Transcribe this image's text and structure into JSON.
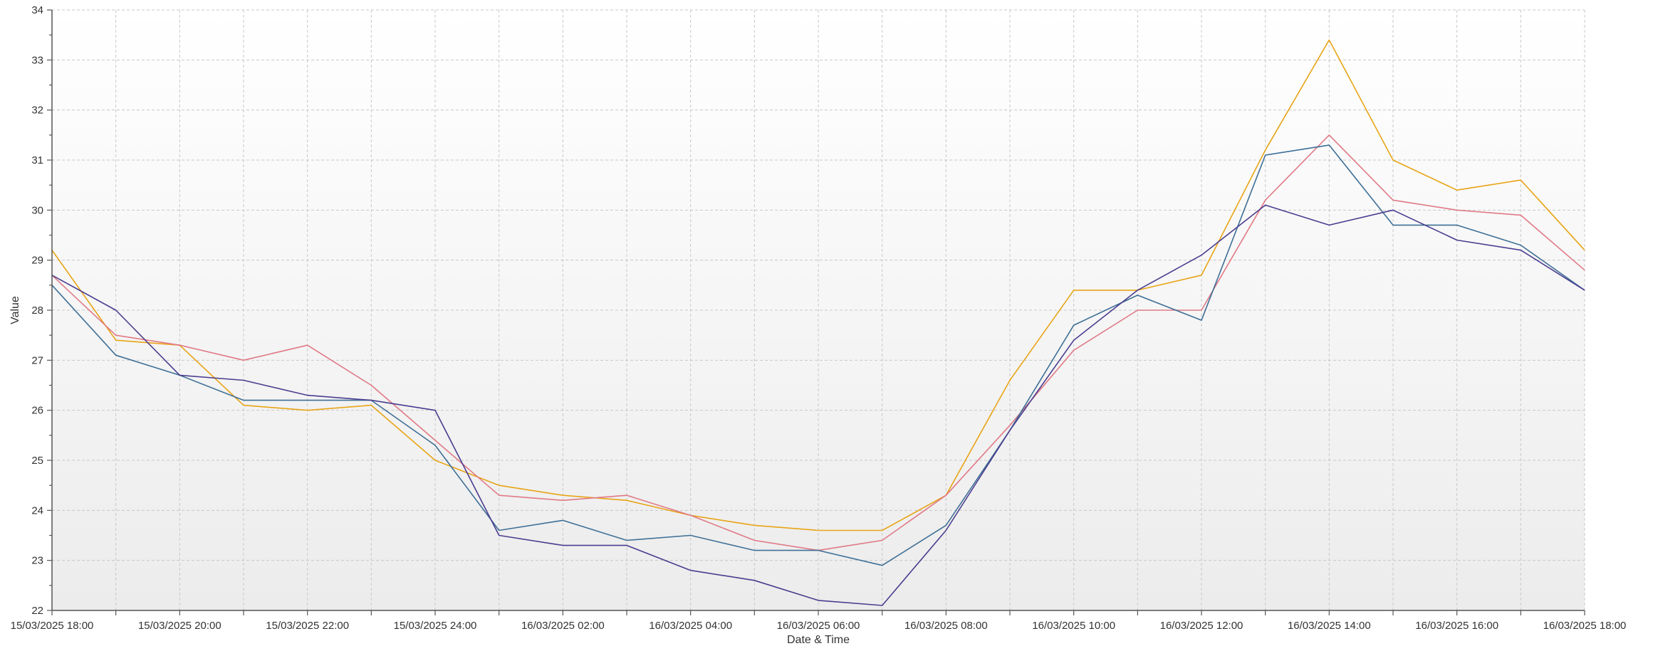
{
  "chart_data": {
    "type": "line",
    "xlabel": "Date & Time",
    "ylabel": "Value",
    "ylim": [
      22,
      34
    ],
    "yticks": [
      22,
      23,
      24,
      25,
      26,
      27,
      28,
      29,
      30,
      31,
      32,
      33,
      34
    ],
    "grid": true,
    "x": [
      "15/03/2025 18:00",
      "15/03/2025 19:00",
      "15/03/2025 20:00",
      "15/03/2025 21:00",
      "15/03/2025 22:00",
      "15/03/2025 23:00",
      "15/03/2025 24:00",
      "16/03/2025 01:00",
      "16/03/2025 02:00",
      "16/03/2025 03:00",
      "16/03/2025 04:00",
      "16/03/2025 05:00",
      "16/03/2025 06:00",
      "16/03/2025 07:00",
      "16/03/2025 08:00",
      "16/03/2025 09:00",
      "16/03/2025 10:00",
      "16/03/2025 11:00",
      "16/03/2025 12:00",
      "16/03/2025 13:00",
      "16/03/2025 14:00",
      "16/03/2025 15:00",
      "16/03/2025 16:00",
      "16/03/2025 17:00",
      "16/03/2025 18:00"
    ],
    "xticks": [
      "15/03/2025 18:00",
      "15/03/2025 20:00",
      "15/03/2025 22:00",
      "15/03/2025 24:00",
      "16/03/2025 02:00",
      "16/03/2025 04:00",
      "16/03/2025 06:00",
      "16/03/2025 08:00",
      "16/03/2025 10:00",
      "16/03/2025 12:00",
      "16/03/2025 14:00",
      "16/03/2025 16:00",
      "16/03/2025 18:00"
    ],
    "series": [
      {
        "color": "#e8a416",
        "values": [
          29.2,
          27.4,
          27.3,
          26.1,
          26.0,
          26.1,
          25.0,
          24.5,
          24.3,
          24.2,
          23.9,
          23.7,
          23.6,
          23.6,
          24.3,
          26.6,
          28.4,
          28.4,
          28.7,
          31.2,
          33.4,
          31.0,
          30.4,
          30.6,
          29.2
        ]
      },
      {
        "color": "#e07a86",
        "values": [
          28.7,
          27.5,
          27.3,
          27.0,
          27.3,
          26.5,
          25.4,
          24.3,
          24.2,
          24.3,
          23.9,
          23.4,
          23.2,
          23.4,
          24.3,
          25.7,
          27.2,
          28.0,
          28.0,
          30.2,
          31.5,
          30.2,
          30.0,
          29.9,
          28.8
        ]
      },
      {
        "color": "#3e6f96",
        "values": [
          28.5,
          27.1,
          26.7,
          26.2,
          26.2,
          26.2,
          25.3,
          23.6,
          23.8,
          23.4,
          23.5,
          23.2,
          23.2,
          22.9,
          23.7,
          25.6,
          27.7,
          28.3,
          27.8,
          31.1,
          31.3,
          29.7,
          29.7,
          29.3,
          28.4
        ]
      },
      {
        "color": "#4a3d8f",
        "values": [
          28.7,
          28.0,
          26.7,
          26.6,
          26.3,
          26.2,
          26.0,
          23.5,
          23.3,
          23.3,
          22.8,
          22.6,
          22.2,
          22.1,
          23.6,
          25.6,
          27.4,
          28.4,
          29.1,
          30.1,
          29.7,
          30.0,
          29.4,
          29.2,
          28.4
        ]
      }
    ]
  }
}
